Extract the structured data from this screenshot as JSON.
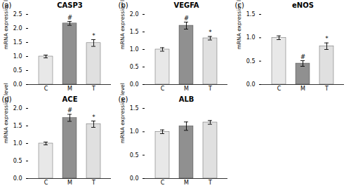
{
  "chart_data": [
    {
      "type": "bar",
      "title": "CASP3",
      "ylabel": "mRNA expression level",
      "categories": [
        "C",
        "M",
        "T"
      ],
      "values": [
        1.0,
        2.18,
        1.48
      ],
      "errors": [
        0.05,
        0.07,
        0.12
      ],
      "colors": [
        "#e8e8e8",
        "#909090",
        "#e0e0e0"
      ],
      "ylim": [
        0,
        2.5
      ],
      "yticks": [
        {
          "value": 0,
          "label": "0.0"
        },
        0.5,
        {
          "value": 1,
          "label": "1.0"
        },
        1.5,
        {
          "value": 2,
          "label": "2.0"
        },
        2.5
      ],
      "annotations": [
        {
          "text": "(a)"
        },
        {
          "text": "#",
          "category": "M"
        },
        {
          "text": "*",
          "category": "T"
        }
      ]
    },
    {
      "type": "bar",
      "title": "VEGFA",
      "ylabel": "mRNA expression level",
      "categories": [
        "C",
        "M",
        "T"
      ],
      "values": [
        1.0,
        1.68,
        1.32
      ],
      "errors": [
        0.05,
        0.1,
        0.05
      ],
      "colors": [
        "#e8e8e8",
        "#909090",
        "#e0e0e0"
      ],
      "ylim": [
        0,
        2.0
      ],
      "yticks": [
        {
          "value": 0,
          "label": "0.0"
        },
        0.5,
        {
          "value": 1,
          "label": "1.0"
        },
        1.5,
        {
          "value": 2,
          "label": "2.0"
        }
      ],
      "annotations": [
        {
          "text": "(b)"
        },
        {
          "text": "#",
          "category": "M"
        },
        {
          "text": "*",
          "category": "T"
        }
      ]
    },
    {
      "type": "bar",
      "title": "eNOS",
      "ylabel": "mRNA expression level",
      "categories": [
        "C",
        "M",
        "T"
      ],
      "values": [
        1.0,
        0.45,
        0.82
      ],
      "errors": [
        0.04,
        0.06,
        0.07
      ],
      "colors": [
        "#e8e8e8",
        "#909090",
        "#e0e0e0"
      ],
      "ylim": [
        0,
        1.5
      ],
      "yticks": [
        {
          "value": 0,
          "label": "0.0"
        },
        0.5,
        {
          "value": 1,
          "label": "1.0"
        },
        1.5
      ],
      "annotations": [
        {
          "text": "(c)"
        },
        {
          "text": "#",
          "category": "M"
        },
        {
          "text": "*",
          "category": "T"
        }
      ]
    },
    {
      "type": "bar",
      "title": "ACE",
      "ylabel": "mRNA expression level",
      "categories": [
        "C",
        "M",
        "T"
      ],
      "values": [
        1.0,
        1.73,
        1.55
      ],
      "errors": [
        0.04,
        0.1,
        0.09
      ],
      "colors": [
        "#e8e8e8",
        "#909090",
        "#e0e0e0"
      ],
      "ylim": [
        0,
        2.0
      ],
      "yticks": [
        {
          "value": 0,
          "label": "0.0"
        },
        0.5,
        {
          "value": 1,
          "label": "1.0"
        },
        1.5,
        {
          "value": 2,
          "label": "2.0"
        }
      ],
      "annotations": [
        {
          "text": "(d)"
        },
        {
          "text": "#",
          "category": "M"
        },
        {
          "text": "*",
          "category": "T"
        }
      ]
    },
    {
      "type": "bar",
      "title": "ALB",
      "ylabel": "mRNA expression level",
      "categories": [
        "C",
        "M",
        "T"
      ],
      "values": [
        1.0,
        1.12,
        1.2
      ],
      "errors": [
        0.04,
        0.09,
        0.04
      ],
      "colors": [
        "#e8e8e8",
        "#909090",
        "#e0e0e0"
      ],
      "ylim": [
        0,
        1.5
      ],
      "yticks": [
        {
          "value": 0,
          "label": "0.0"
        },
        0.5,
        {
          "value": 1,
          "label": "1.0"
        },
        1.5
      ],
      "annotations": [
        {
          "text": "(e)"
        }
      ]
    }
  ]
}
